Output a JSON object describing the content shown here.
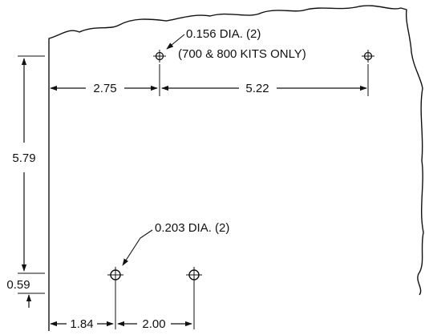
{
  "drawing": {
    "holes": {
      "small": {
        "label": "0.156 DIA. (2)",
        "note": "(700 & 800 KITS ONLY)"
      },
      "large": {
        "label": "0.203 DIA. (2)"
      }
    },
    "dimensions": {
      "edge_to_hole_top": "2.75",
      "hole_spacing_top": "5.22",
      "height": "5.79",
      "bottom_offset": "0.59",
      "edge_to_hole_bottom": "1.84",
      "hole_spacing_bottom": "2.00"
    }
  }
}
